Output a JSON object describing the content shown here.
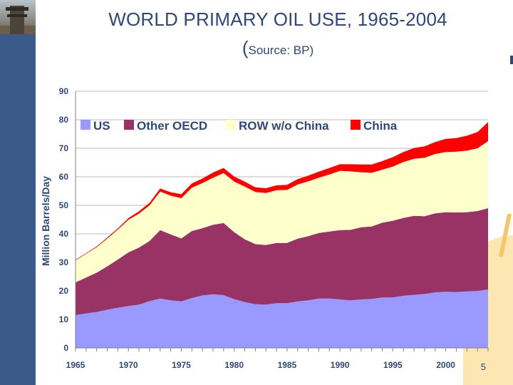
{
  "slide": {
    "title": "WORLD PRIMARY OIL USE, 1965-2004",
    "subtitle_paren": "(",
    "subtitle_text": "Source: BP)",
    "page_number": "5"
  },
  "colors": {
    "sidebar": "#3a5a8c",
    "title": "#2e4878",
    "us": "#9999ff",
    "other_oecd": "#993366",
    "row": "#ffffcc",
    "china": "#ff0000"
  },
  "chart_data": {
    "type": "area",
    "title": "WORLD PRIMARY OIL USE, 1965-2004",
    "ylabel": "Million  Barrels/Day",
    "xlabel": "",
    "ylim": [
      0,
      90
    ],
    "xlim": [
      1965,
      2004
    ],
    "y_ticks": [
      0,
      10,
      20,
      30,
      40,
      50,
      60,
      70,
      80,
      90
    ],
    "x_ticks": [
      1965,
      1970,
      1975,
      1980,
      1985,
      1990,
      1995,
      2000
    ],
    "grid": "horizontal",
    "stacked": true,
    "legend_position": "top-left",
    "x": [
      1965,
      1966,
      1967,
      1968,
      1969,
      1970,
      1971,
      1972,
      1973,
      1974,
      1975,
      1976,
      1977,
      1978,
      1979,
      1980,
      1981,
      1982,
      1983,
      1984,
      1985,
      1986,
      1987,
      1988,
      1989,
      1990,
      1991,
      1992,
      1993,
      1994,
      1995,
      1996,
      1997,
      1998,
      1999,
      2000,
      2001,
      2002,
      2003,
      2004
    ],
    "series": [
      {
        "name": "US",
        "color_key": "us",
        "values": [
          11.5,
          12.1,
          12.6,
          13.4,
          14.1,
          14.7,
          15.2,
          16.4,
          17.3,
          16.7,
          16.3,
          17.5,
          18.4,
          18.8,
          18.5,
          17.1,
          16.1,
          15.3,
          15.2,
          15.7,
          15.7,
          16.3,
          16.7,
          17.3,
          17.3,
          17.0,
          16.7,
          17.0,
          17.2,
          17.7,
          17.7,
          18.3,
          18.6,
          18.9,
          19.5,
          19.7,
          19.6,
          19.8,
          20.0,
          20.5
        ]
      },
      {
        "name": "Other OECD",
        "color_key": "other_oecd",
        "values": [
          11.5,
          12.6,
          13.8,
          15.2,
          16.9,
          18.8,
          20.0,
          21.1,
          24.0,
          23.1,
          22.1,
          23.5,
          23.6,
          24.4,
          25.3,
          23.5,
          22.0,
          21.1,
          20.9,
          21.1,
          21.1,
          22.0,
          22.5,
          23.0,
          23.5,
          24.3,
          24.7,
          25.3,
          25.4,
          26.2,
          26.9,
          27.3,
          27.7,
          27.3,
          27.7,
          27.9,
          27.9,
          27.8,
          28.0,
          28.5
        ]
      },
      {
        "name": "ROW w/o China",
        "color_key": "row",
        "values": [
          7.7,
          8.3,
          8.9,
          9.7,
          10.5,
          11.4,
          11.9,
          12.5,
          13.5,
          13.6,
          14.1,
          15.2,
          15.8,
          16.5,
          17.5,
          17.7,
          18.5,
          18.3,
          18.2,
          18.5,
          18.6,
          19.0,
          19.2,
          19.4,
          20.0,
          20.8,
          20.5,
          19.3,
          18.8,
          18.6,
          19.0,
          19.6,
          20.0,
          20.5,
          20.8,
          21.1,
          21.3,
          21.6,
          22.0,
          23.5
        ]
      },
      {
        "name": "China",
        "color_key": "china",
        "values": [
          0.2,
          0.2,
          0.3,
          0.4,
          0.4,
          0.6,
          0.8,
          0.9,
          1.1,
          1.2,
          1.4,
          1.5,
          1.6,
          1.8,
          1.8,
          1.8,
          1.7,
          1.6,
          1.7,
          1.7,
          1.8,
          1.9,
          2.0,
          2.1,
          2.3,
          2.3,
          2.5,
          2.7,
          2.9,
          3.0,
          3.3,
          3.5,
          3.8,
          4.0,
          4.2,
          4.6,
          4.8,
          5.2,
          5.7,
          6.7
        ]
      }
    ]
  }
}
